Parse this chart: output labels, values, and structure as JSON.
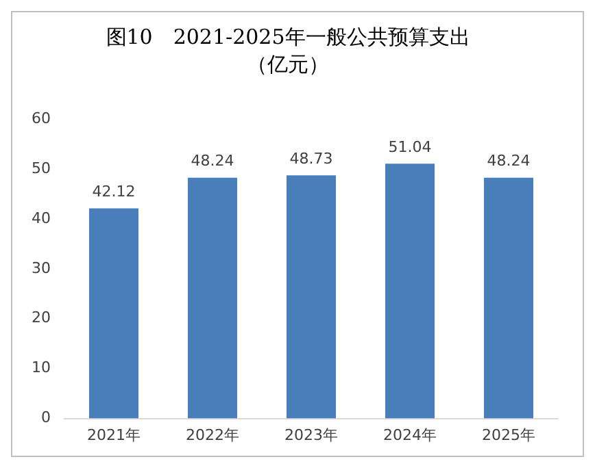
{
  "chart_data": {
    "type": "bar",
    "title": "图10　2021-2025年一般公共预算支出",
    "subtitle": "（亿元）",
    "categories": [
      "2021年",
      "2022年",
      "2023年",
      "2024年",
      "2025年"
    ],
    "values": [
      42.12,
      48.24,
      48.73,
      51.04,
      48.24
    ],
    "color": "#4a7ebb",
    "ylim": [
      0,
      60
    ],
    "yticks": [
      0,
      10,
      20,
      30,
      40,
      50,
      60
    ],
    "grid": false,
    "data_labels": true
  }
}
